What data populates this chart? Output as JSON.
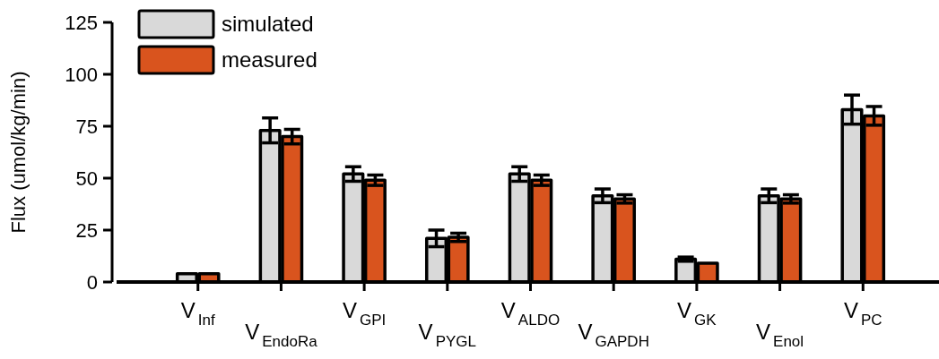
{
  "chart_data": {
    "type": "bar",
    "ylabel": "Flux (umol/kg/min)",
    "categories": [
      "V$_{Inf}$",
      "V$_{EndoRa}$",
      "V$_{GPI}$",
      "V$_{PYGL}$",
      "V$_{ALDO}$",
      "V$_{GAPDH}$",
      "V$_{GK}$",
      "V$_{Enol}$",
      "V$_{PC}$"
    ],
    "series": [
      {
        "name": "simulated",
        "color": "#d9d9d9",
        "values": [
          4,
          73,
          52,
          21,
          52,
          41.5,
          11,
          41.5,
          83
        ],
        "errors": [
          null,
          6,
          3.5,
          4,
          3.5,
          3.3,
          1,
          3.3,
          7
        ]
      },
      {
        "name": "measured",
        "color": "#d9541e",
        "values": [
          4,
          70,
          49,
          21.5,
          49,
          40,
          9,
          40,
          80
        ],
        "errors": [
          null,
          3.5,
          2.5,
          2,
          2.5,
          2,
          null,
          2,
          4.5
        ]
      }
    ],
    "ylim": [
      0,
      125
    ],
    "yticks": [
      0,
      25,
      50,
      75,
      100,
      125
    ],
    "grid": false,
    "legend": "top left"
  }
}
